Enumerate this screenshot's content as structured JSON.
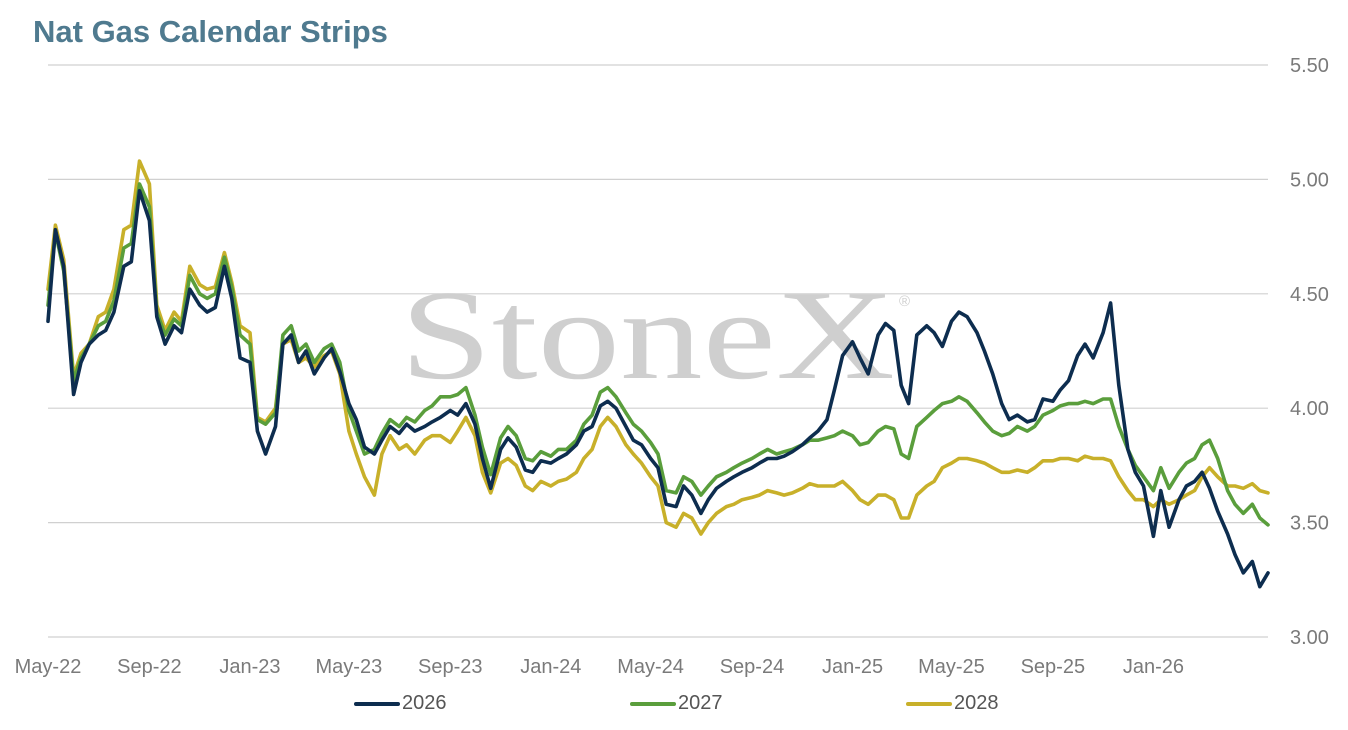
{
  "title": "Nat Gas Calendar Strips",
  "watermark": {
    "text": "StoneX",
    "mark": "®"
  },
  "colors": {
    "2026": "#0d2d4f",
    "2027": "#5a9e3c",
    "2028": "#c8b02a",
    "grid": "#d0d0d0",
    "title": "#4f7a8f"
  },
  "chart_data": {
    "type": "line",
    "title": "Nat Gas Calendar Strips",
    "xlabel": "",
    "ylabel": "",
    "y_axis_side": "right",
    "ylim": [
      3.0,
      5.5
    ],
    "yticks": [
      "3.00",
      "3.50",
      "4.00",
      "4.50",
      "5.00",
      "5.50"
    ],
    "xlim": [
      "2022-05-01",
      "2026-05-20"
    ],
    "xticks": [
      "May-22",
      "Sep-22",
      "Jan-23",
      "May-23",
      "Sep-23",
      "Jan-24",
      "May-24",
      "Sep-24",
      "Jan-25",
      "May-25",
      "Sep-25",
      "Jan-26"
    ],
    "legend_position": "bottom",
    "grid": true,
    "x": [
      "2022-05-01",
      "2022-05-10",
      "2022-05-20",
      "2022-06-01",
      "2022-06-10",
      "2022-06-20",
      "2022-07-01",
      "2022-07-10",
      "2022-07-20",
      "2022-08-01",
      "2022-08-10",
      "2022-08-20",
      "2022-09-01",
      "2022-09-10",
      "2022-09-20",
      "2022-10-01",
      "2022-10-10",
      "2022-10-20",
      "2022-11-01",
      "2022-11-10",
      "2022-11-20",
      "2022-12-01",
      "2022-12-10",
      "2022-12-20",
      "2023-01-01",
      "2023-01-10",
      "2023-01-20",
      "2023-02-01",
      "2023-02-10",
      "2023-02-20",
      "2023-03-01",
      "2023-03-10",
      "2023-03-20",
      "2023-04-01",
      "2023-04-10",
      "2023-04-20",
      "2023-05-01",
      "2023-05-10",
      "2023-05-20",
      "2023-06-01",
      "2023-06-10",
      "2023-06-20",
      "2023-07-01",
      "2023-07-10",
      "2023-07-20",
      "2023-08-01",
      "2023-08-10",
      "2023-08-20",
      "2023-09-01",
      "2023-09-10",
      "2023-09-20",
      "2023-10-01",
      "2023-10-10",
      "2023-10-20",
      "2023-11-01",
      "2023-11-10",
      "2023-11-20",
      "2023-12-01",
      "2023-12-10",
      "2023-12-20",
      "2024-01-01",
      "2024-01-10",
      "2024-01-20",
      "2024-02-01",
      "2024-02-10",
      "2024-02-20",
      "2024-03-01",
      "2024-03-10",
      "2024-03-20",
      "2024-04-01",
      "2024-04-10",
      "2024-04-20",
      "2024-05-01",
      "2024-05-10",
      "2024-05-20",
      "2024-06-01",
      "2024-06-10",
      "2024-06-20",
      "2024-07-01",
      "2024-07-10",
      "2024-07-20",
      "2024-08-01",
      "2024-08-10",
      "2024-08-20",
      "2024-09-01",
      "2024-09-10",
      "2024-09-20",
      "2024-10-01",
      "2024-10-10",
      "2024-10-20",
      "2024-11-01",
      "2024-11-10",
      "2024-11-20",
      "2024-12-01",
      "2024-12-10",
      "2024-12-20",
      "2025-01-01",
      "2025-01-10",
      "2025-01-20",
      "2025-02-01",
      "2025-02-10",
      "2025-02-20",
      "2025-03-01",
      "2025-03-10",
      "2025-03-20",
      "2025-04-01",
      "2025-04-10",
      "2025-04-20",
      "2025-05-01",
      "2025-05-10",
      "2025-05-20",
      "2025-06-01",
      "2025-06-10",
      "2025-06-20",
      "2025-07-01",
      "2025-07-10",
      "2025-07-20",
      "2025-08-01",
      "2025-08-10",
      "2025-08-20",
      "2025-09-01",
      "2025-09-10",
      "2025-09-20",
      "2025-10-01",
      "2025-10-10",
      "2025-10-20",
      "2025-11-01",
      "2025-11-10",
      "2025-11-20",
      "2025-12-01",
      "2025-12-10",
      "2025-12-20",
      "2026-01-01",
      "2026-01-10",
      "2026-01-20",
      "2026-02-01",
      "2026-02-10",
      "2026-02-20",
      "2026-03-01",
      "2026-03-10",
      "2026-03-20",
      "2026-04-01",
      "2026-04-10",
      "2026-04-20",
      "2026-05-01",
      "2026-05-10",
      "2026-05-20"
    ],
    "series": [
      {
        "name": "2026",
        "values": [
          4.38,
          4.78,
          4.62,
          4.06,
          4.2,
          4.28,
          4.32,
          4.34,
          4.42,
          4.62,
          4.64,
          4.95,
          4.82,
          4.4,
          4.28,
          4.36,
          4.33,
          4.52,
          4.45,
          4.42,
          4.44,
          4.62,
          4.48,
          4.22,
          4.2,
          3.9,
          3.8,
          3.92,
          4.28,
          4.32,
          4.2,
          4.25,
          4.15,
          4.22,
          4.26,
          4.16,
          4.02,
          3.95,
          3.83,
          3.8,
          3.86,
          3.92,
          3.89,
          3.93,
          3.9,
          3.92,
          3.94,
          3.96,
          3.99,
          3.97,
          4.02,
          3.93,
          3.78,
          3.65,
          3.82,
          3.87,
          3.83,
          3.73,
          3.72,
          3.77,
          3.76,
          3.78,
          3.8,
          3.84,
          3.9,
          3.92,
          4.01,
          4.03,
          4.0,
          3.92,
          3.86,
          3.84,
          3.78,
          3.74,
          3.58,
          3.57,
          3.66,
          3.62,
          3.54,
          3.6,
          3.65,
          3.68,
          3.7,
          3.72,
          3.74,
          3.76,
          3.78,
          3.78,
          3.79,
          3.81,
          3.84,
          3.87,
          3.9,
          3.95,
          4.08,
          4.23,
          4.29,
          4.22,
          4.15,
          4.32,
          4.37,
          4.34,
          4.1,
          4.02,
          4.32,
          4.36,
          4.33,
          4.27,
          4.38,
          4.42,
          4.4,
          4.33,
          4.25,
          4.15,
          4.02,
          3.95,
          3.97,
          3.94,
          3.95,
          4.04,
          4.03,
          4.08,
          4.12,
          4.23,
          4.28,
          4.22,
          4.33,
          4.46,
          4.1,
          3.82,
          3.72,
          3.66,
          3.44,
          3.64,
          3.48,
          3.6,
          3.66,
          3.68,
          3.72,
          3.65,
          3.55,
          3.45,
          3.36,
          3.28,
          3.33,
          3.22,
          3.28
        ]
      },
      {
        "name": "2027",
        "values": [
          4.45,
          4.77,
          4.6,
          4.12,
          4.22,
          4.28,
          4.36,
          4.38,
          4.47,
          4.7,
          4.72,
          4.98,
          4.88,
          4.42,
          4.32,
          4.39,
          4.36,
          4.58,
          4.5,
          4.48,
          4.5,
          4.66,
          4.53,
          4.32,
          4.28,
          3.95,
          3.93,
          3.98,
          4.32,
          4.36,
          4.25,
          4.28,
          4.2,
          4.26,
          4.28,
          4.2,
          3.99,
          3.9,
          3.8,
          3.82,
          3.89,
          3.95,
          3.92,
          3.96,
          3.94,
          3.99,
          4.01,
          4.05,
          4.05,
          4.06,
          4.09,
          3.97,
          3.83,
          3.71,
          3.87,
          3.92,
          3.88,
          3.78,
          3.77,
          3.81,
          3.79,
          3.82,
          3.82,
          3.86,
          3.93,
          3.97,
          4.07,
          4.09,
          4.05,
          3.98,
          3.93,
          3.9,
          3.85,
          3.8,
          3.64,
          3.63,
          3.7,
          3.68,
          3.62,
          3.66,
          3.7,
          3.72,
          3.74,
          3.76,
          3.78,
          3.8,
          3.82,
          3.8,
          3.81,
          3.82,
          3.84,
          3.86,
          3.86,
          3.87,
          3.88,
          3.9,
          3.88,
          3.84,
          3.85,
          3.9,
          3.92,
          3.91,
          3.8,
          3.78,
          3.92,
          3.96,
          3.99,
          4.02,
          4.03,
          4.05,
          4.03,
          3.98,
          3.94,
          3.9,
          3.88,
          3.89,
          3.92,
          3.9,
          3.92,
          3.97,
          3.99,
          4.01,
          4.02,
          4.02,
          4.03,
          4.02,
          4.04,
          4.04,
          3.92,
          3.82,
          3.75,
          3.7,
          3.64,
          3.74,
          3.65,
          3.72,
          3.76,
          3.78,
          3.84,
          3.86,
          3.78,
          3.64,
          3.58,
          3.54,
          3.58,
          3.52,
          3.49
        ]
      },
      {
        "name": "2028",
        "values": [
          4.52,
          4.8,
          4.65,
          4.14,
          4.24,
          4.28,
          4.4,
          4.42,
          4.52,
          4.78,
          4.8,
          5.08,
          4.98,
          4.45,
          4.34,
          4.42,
          4.38,
          4.62,
          4.54,
          4.52,
          4.53,
          4.68,
          4.55,
          4.36,
          4.33,
          3.96,
          3.94,
          4.0,
          4.28,
          4.3,
          4.2,
          4.22,
          4.18,
          4.23,
          4.25,
          4.15,
          3.9,
          3.8,
          3.7,
          3.62,
          3.8,
          3.88,
          3.82,
          3.84,
          3.8,
          3.86,
          3.88,
          3.88,
          3.85,
          3.9,
          3.96,
          3.88,
          3.72,
          3.63,
          3.76,
          3.78,
          3.75,
          3.66,
          3.64,
          3.68,
          3.66,
          3.68,
          3.69,
          3.72,
          3.78,
          3.82,
          3.92,
          3.96,
          3.92,
          3.84,
          3.8,
          3.76,
          3.7,
          3.66,
          3.5,
          3.48,
          3.54,
          3.52,
          3.45,
          3.5,
          3.54,
          3.57,
          3.58,
          3.6,
          3.61,
          3.62,
          3.64,
          3.63,
          3.62,
          3.63,
          3.65,
          3.67,
          3.66,
          3.66,
          3.66,
          3.68,
          3.64,
          3.6,
          3.58,
          3.62,
          3.62,
          3.6,
          3.52,
          3.52,
          3.62,
          3.66,
          3.68,
          3.74,
          3.76,
          3.78,
          3.78,
          3.77,
          3.76,
          3.74,
          3.72,
          3.72,
          3.73,
          3.72,
          3.74,
          3.77,
          3.77,
          3.78,
          3.78,
          3.77,
          3.79,
          3.78,
          3.78,
          3.77,
          3.7,
          3.64,
          3.6,
          3.6,
          3.57,
          3.6,
          3.58,
          3.6,
          3.62,
          3.64,
          3.7,
          3.74,
          3.7,
          3.66,
          3.66,
          3.65,
          3.67,
          3.64,
          3.63
        ]
      }
    ]
  },
  "legend": [
    {
      "label": "2026",
      "color": "#0d2d4f"
    },
    {
      "label": "2027",
      "color": "#5a9e3c"
    },
    {
      "label": "2028",
      "color": "#c8b02a"
    }
  ]
}
